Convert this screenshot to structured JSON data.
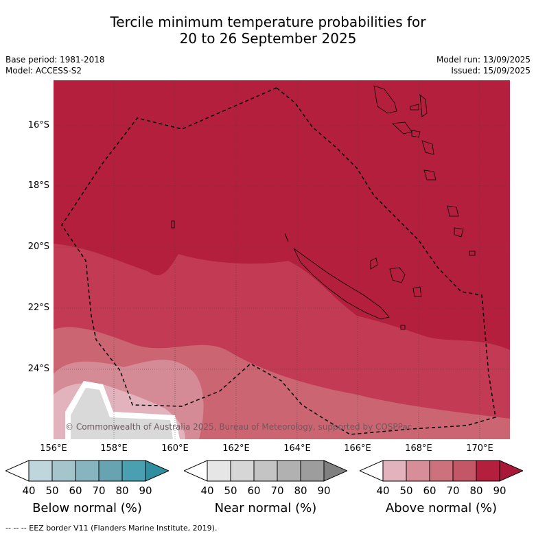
{
  "title_line1": "Tercile minimum temperature probabilities for",
  "title_line2": "20 to 26 September 2025",
  "base_period": "Base period: 1981-2018",
  "model": "Model: ACCESS-S2",
  "model_run": "Model run: 13/09/2025",
  "issued": "Issued: 15/09/2025",
  "lat_labels": [
    "16°S",
    "18°S",
    "20°S",
    "22°S",
    "24°S"
  ],
  "lon_labels": [
    "156°E",
    "158°E",
    "160°E",
    "162°E",
    "164°E",
    "166°E",
    "168°E",
    "170°E"
  ],
  "copyright": "© Commonwealth of Australia 2025, Bureau of Meteorology, supported by COSPPac",
  "colorbars": [
    {
      "label": "Below normal (%)",
      "ticks": [
        "40",
        "50",
        "60",
        "70",
        "80",
        "90"
      ],
      "colors": [
        "#ffffff",
        "#c0d6dd",
        "#a4c5cc",
        "#86b4bf",
        "#68a3b1",
        "#4aa0b0",
        "#2f8ea0"
      ]
    },
    {
      "label": "Near normal (%)",
      "ticks": [
        "40",
        "50",
        "60",
        "70",
        "80",
        "90"
      ],
      "colors": [
        "#ffffff",
        "#e6e6e6",
        "#d6d6d6",
        "#c4c4c4",
        "#b1b1b1",
        "#9d9d9d",
        "#808080"
      ]
    },
    {
      "label": "Above normal (%)",
      "ticks": [
        "40",
        "50",
        "60",
        "70",
        "80",
        "90"
      ],
      "colors": [
        "#ffffff",
        "#e3b3bd",
        "#d88e98",
        "#cd727c",
        "#c45766",
        "#b31f3c",
        "#a81838"
      ]
    }
  ],
  "footnote": "--  --  -- EEZ border V11 (Flanders Marine Institute, 2019).",
  "colors": {
    "above90": "#b31f3c",
    "above80": "#c23a53",
    "above70": "#cb6572",
    "above60": "#d48b96",
    "above50": "#e3b3bd",
    "near": "#d9d9d9"
  }
}
